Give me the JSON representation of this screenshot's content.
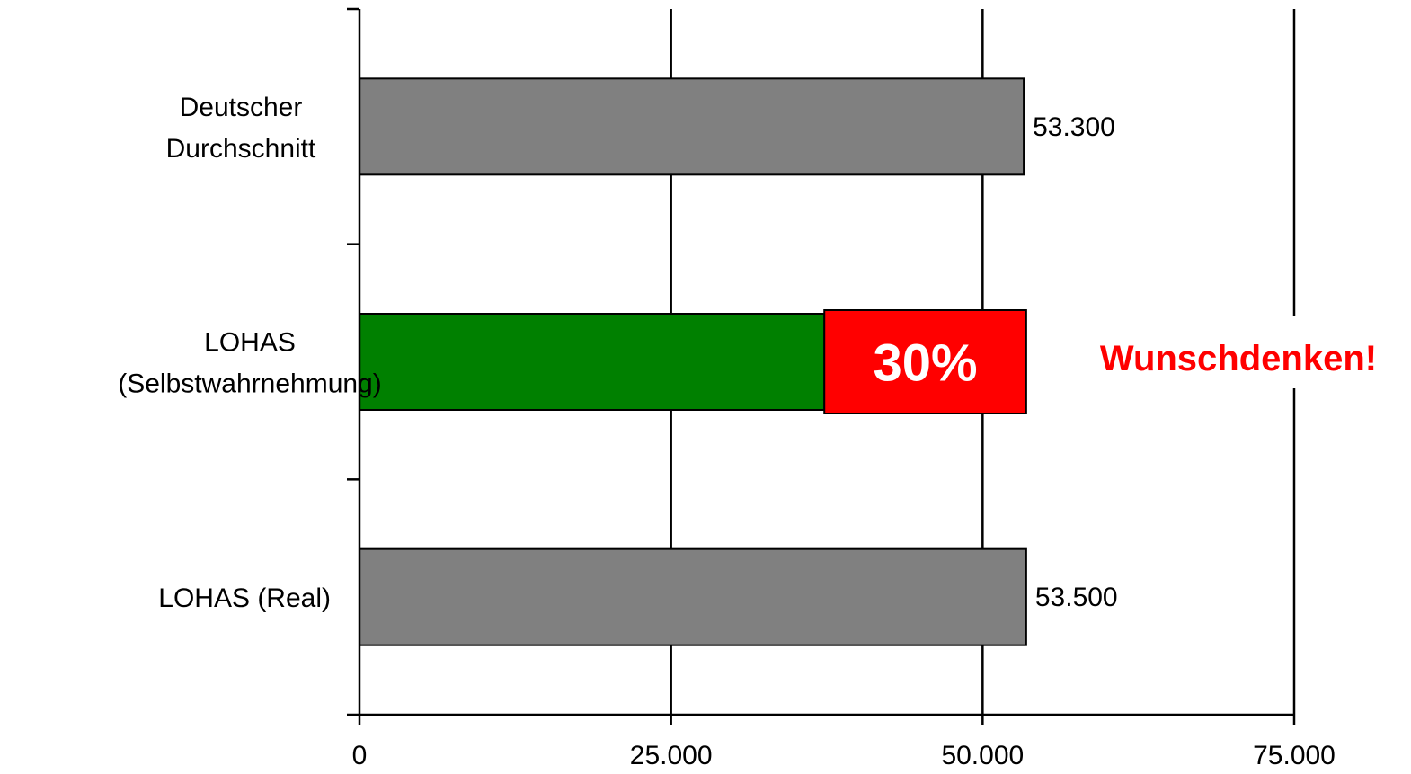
{
  "chart_data": {
    "type": "bar",
    "orientation": "horizontal",
    "categories": [
      [
        "Deutscher",
        "Durchschnitt"
      ],
      [
        "LOHAS",
        "(Selbstwahrnehmung)"
      ],
      [
        "LOHAS   (Real)"
      ]
    ],
    "values": [
      53300,
      37300,
      53500
    ],
    "value_labels": [
      "53.300",
      "",
      "53.500"
    ],
    "bar_colors": [
      "#808080",
      "#008000",
      "#808080"
    ],
    "xlim": [
      0,
      75000
    ],
    "xticks": [
      0,
      25000,
      50000,
      75000
    ],
    "xtick_labels": [
      "0",
      "25.000",
      "50.000",
      "75.000"
    ],
    "grid": "vertical major gridlines",
    "overlay": {
      "category_index": 1,
      "from": 37300,
      "to": 53500,
      "label": "30%",
      "color": "#ff0000"
    },
    "callout": {
      "text": "Wunschdenken!",
      "color": "#ff0000"
    },
    "title": "",
    "xlabel": "",
    "ylabel": ""
  }
}
